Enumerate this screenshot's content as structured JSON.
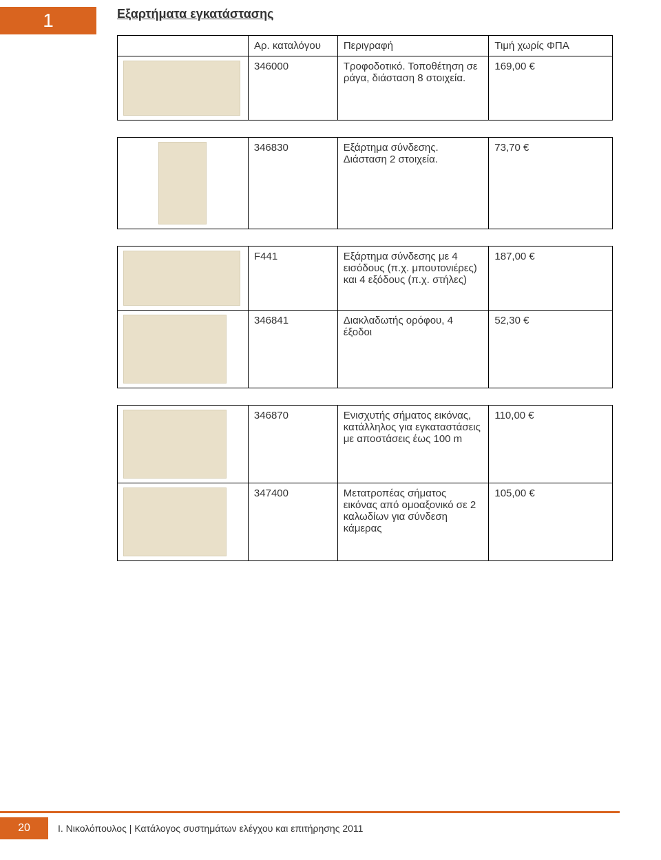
{
  "page_tab": "1",
  "section_title": "Εξαρτήματα εγκατάστασης",
  "table_headers": {
    "code": "Αρ. καταλόγου",
    "desc": "Περιγραφή",
    "price": "Τιμή χωρίς ΦΠΑ"
  },
  "table1": {
    "rows": [
      {
        "code": "346000",
        "desc": "Τροφοδοτικό. Τοποθέτηση σε ράγα, διάσταση 8 στοιχεία.",
        "price": "169,00 €"
      }
    ]
  },
  "table2": {
    "rows": [
      {
        "code": "346830",
        "desc": "Εξάρτημα σύνδεσης. Διάσταση 2 στοιχεία.",
        "price": "73,70 €"
      }
    ]
  },
  "table3": {
    "rows": [
      {
        "code": "F441",
        "desc": "Εξάρτημα σύνδεσης με 4 εισόδους (π.χ. μπουτονιέρες) και 4 εξόδους (π.χ. στήλες)",
        "price": "187,00 €"
      },
      {
        "code": "346841",
        "desc": "Διακλαδωτής ορόφου, 4 έξοδοι",
        "price": "52,30 €"
      }
    ]
  },
  "table4": {
    "rows": [
      {
        "code": "346870",
        "desc": "Ενισχυτής σήματος εικόνας, κατάλληλος για εγκαταστάσεις με αποστάσεις έως 100 m",
        "price": "110,00 €"
      },
      {
        "code": "347400",
        "desc": "Μετατροπέας σήματος εικόνας από ομοαξονικό σε 2 καλωδίων για σύνδεση κάμερας",
        "price": "105,00 €"
      }
    ]
  },
  "footer": {
    "page_number": "20",
    "text": "Ι. Νικολόπουλος | Κατάλογος συστημάτων ελέγχου και επιτήρησης 2011"
  },
  "colors": {
    "accent": "#d9641f",
    "img_bg": "#e9e0c9"
  }
}
